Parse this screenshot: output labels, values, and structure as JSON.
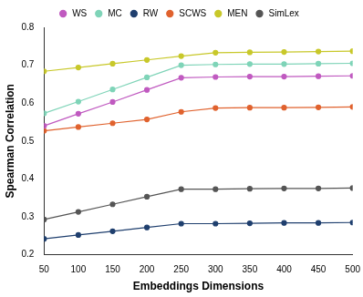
{
  "chart_data": {
    "type": "line",
    "x_label": "Embeddings Dimensions",
    "y_label": "Spearman Correlation",
    "x": [
      50,
      100,
      150,
      200,
      250,
      300,
      350,
      400,
      450,
      500
    ],
    "series": [
      {
        "name": "WS",
        "color": "#c05ac0",
        "values": [
          0.54,
          0.572,
          0.603,
          0.635,
          0.667,
          0.669,
          0.67,
          0.67,
          0.671,
          0.672
        ]
      },
      {
        "name": "MC",
        "color": "#7fd4b8",
        "values": [
          0.573,
          0.604,
          0.636,
          0.668,
          0.7,
          0.702,
          0.703,
          0.703,
          0.704,
          0.705
        ]
      },
      {
        "name": "RW",
        "color": "#1f3f6e",
        "values": [
          0.242,
          0.252,
          0.262,
          0.272,
          0.282,
          0.282,
          0.283,
          0.284,
          0.284,
          0.285
        ]
      },
      {
        "name": "SCWS",
        "color": "#e0622e",
        "values": [
          0.527,
          0.537,
          0.547,
          0.557,
          0.577,
          0.587,
          0.588,
          0.588,
          0.589,
          0.59
        ]
      },
      {
        "name": "MEN",
        "color": "#c8c82a",
        "values": [
          0.684,
          0.694,
          0.704,
          0.714,
          0.724,
          0.733,
          0.734,
          0.735,
          0.736,
          0.737
        ]
      },
      {
        "name": "SimLex",
        "color": "#555555",
        "values": [
          0.293,
          0.313,
          0.333,
          0.353,
          0.373,
          0.373,
          0.374,
          0.375,
          0.375,
          0.376
        ]
      }
    ],
    "xlim": [
      50,
      500
    ],
    "xticks": [
      50,
      100,
      150,
      200,
      250,
      300,
      350,
      400,
      450,
      500
    ],
    "ylim": [
      0.2,
      0.8
    ],
    "yticks": [
      0.2,
      0.3,
      0.4,
      0.5,
      0.6,
      0.7,
      0.8
    ],
    "grid": false,
    "legend": "top",
    "marker": "circle"
  }
}
